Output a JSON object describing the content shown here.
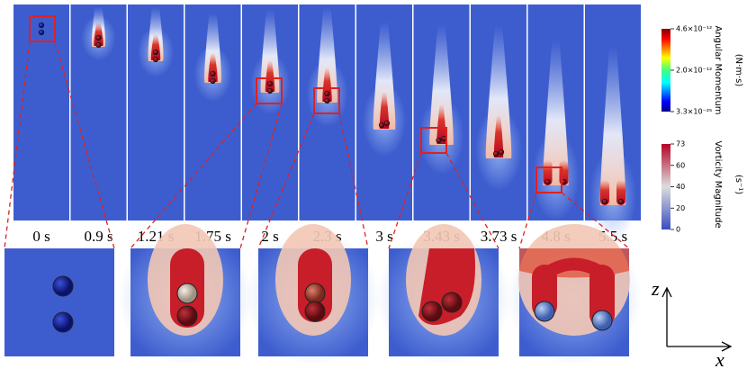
{
  "figure": {
    "time_labels": [
      "0 s",
      "0.9 s",
      "1.21 s",
      "1.75 s",
      "2 s",
      "2.3 s",
      "3 s",
      "3.43 s",
      "3.73 s",
      "4.8 s",
      "5.5 s"
    ],
    "colorbars": [
      {
        "title": "Angular Momentum",
        "unit": "(N·m·s)",
        "ticks": [
          "4.6×10⁻¹²",
          "2.0×10⁻¹²",
          "3.3×10⁻²⁵"
        ]
      },
      {
        "title": "Vorticity Magnitude",
        "unit": "(s⁻¹)",
        "ticks": [
          "73",
          "60",
          "40",
          "20",
          "0"
        ]
      }
    ],
    "axes": {
      "vertical": "z",
      "horizontal": "x"
    }
  }
}
